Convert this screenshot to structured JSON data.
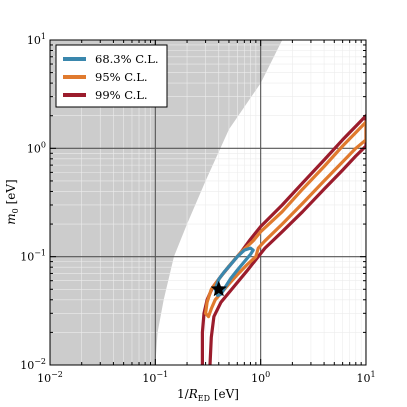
{
  "chart_data": {
    "type": "contour",
    "xlabel": "1/R_ED [eV]",
    "ylabel": "m_0 [eV]",
    "xscale": "log",
    "yscale": "log",
    "xlim": [
      0.01,
      10
    ],
    "ylim": [
      0.01,
      10
    ],
    "x_ticks": [
      0.01,
      0.1,
      1,
      10
    ],
    "y_ticks": [
      0.01,
      0.1,
      1,
      10
    ],
    "grid": true,
    "legend_position": "top-left",
    "best_fit": {
      "x": 0.4,
      "y": 0.05
    },
    "excluded_region": {
      "color": "#cccccc",
      "boundary": [
        [
          0.1,
          0.01
        ],
        [
          0.105,
          0.02
        ],
        [
          0.12,
          0.04
        ],
        [
          0.15,
          0.1
        ],
        [
          0.2,
          0.2
        ],
        [
          0.3,
          0.5
        ],
        [
          0.5,
          1.5
        ],
        [
          1,
          4
        ],
        [
          1.6,
          10
        ]
      ]
    },
    "series": [
      {
        "name": "68.3% C.L.",
        "color": "#3a87ad",
        "contour": [
          [
            0.37,
            0.05
          ],
          [
            0.4,
            0.062
          ],
          [
            0.45,
            0.072
          ],
          [
            0.52,
            0.085
          ],
          [
            0.6,
            0.1
          ],
          [
            0.7,
            0.115
          ],
          [
            0.8,
            0.12
          ],
          [
            0.85,
            0.115
          ],
          [
            0.8,
            0.105
          ],
          [
            0.7,
            0.09
          ],
          [
            0.6,
            0.075
          ],
          [
            0.52,
            0.063
          ],
          [
            0.46,
            0.052
          ],
          [
            0.42,
            0.045
          ],
          [
            0.39,
            0.044
          ],
          [
            0.37,
            0.05
          ]
        ]
      },
      {
        "name": "95% C.L.",
        "color": "#e07a2e",
        "contour": [
          [
            0.3,
            0.03
          ],
          [
            0.31,
            0.038
          ],
          [
            0.34,
            0.05
          ],
          [
            0.4,
            0.062
          ],
          [
            0.5,
            0.082
          ],
          [
            0.65,
            0.11
          ],
          [
            0.85,
            0.14
          ],
          [
            1,
            0.17
          ],
          [
            1.6,
            0.26
          ],
          [
            2.5,
            0.42
          ],
          [
            4,
            0.68
          ],
          [
            6,
            1.05
          ],
          [
            8,
            1.4
          ],
          [
            10,
            1.75
          ],
          [
            10,
            1.2
          ],
          [
            8,
            1.0
          ],
          [
            6,
            0.75
          ],
          [
            4,
            0.5
          ],
          [
            2.5,
            0.31
          ],
          [
            1.6,
            0.2
          ],
          [
            1.1,
            0.14
          ],
          [
            0.95,
            0.12
          ],
          [
            0.9,
            0.1
          ],
          [
            0.75,
            0.085
          ],
          [
            0.6,
            0.068
          ],
          [
            0.5,
            0.056
          ],
          [
            0.42,
            0.046
          ],
          [
            0.37,
            0.04
          ],
          [
            0.34,
            0.033
          ],
          [
            0.32,
            0.028
          ],
          [
            0.3,
            0.03
          ]
        ]
      },
      {
        "name": "99% C.L.",
        "color": "#9b1c2c",
        "contour": [
          [
            0.28,
            0.01
          ],
          [
            0.28,
            0.02
          ],
          [
            0.29,
            0.03
          ],
          [
            0.31,
            0.04
          ],
          [
            0.35,
            0.052
          ],
          [
            0.42,
            0.066
          ],
          [
            0.52,
            0.085
          ],
          [
            0.65,
            0.11
          ],
          [
            0.8,
            0.145
          ],
          [
            1,
            0.19
          ],
          [
            1.6,
            0.3
          ],
          [
            2.5,
            0.48
          ],
          [
            4,
            0.78
          ],
          [
            6,
            1.2
          ],
          [
            8,
            1.6
          ],
          [
            10,
            2.0
          ],
          [
            10,
            1.05
          ],
          [
            8,
            0.85
          ],
          [
            6,
            0.63
          ],
          [
            4,
            0.42
          ],
          [
            2.5,
            0.26
          ],
          [
            1.6,
            0.17
          ],
          [
            1.1,
            0.12
          ],
          [
            0.75,
            0.075
          ],
          [
            0.55,
            0.052
          ],
          [
            0.42,
            0.038
          ],
          [
            0.36,
            0.028
          ],
          [
            0.34,
            0.018
          ],
          [
            0.33,
            0.01
          ]
        ]
      }
    ]
  }
}
